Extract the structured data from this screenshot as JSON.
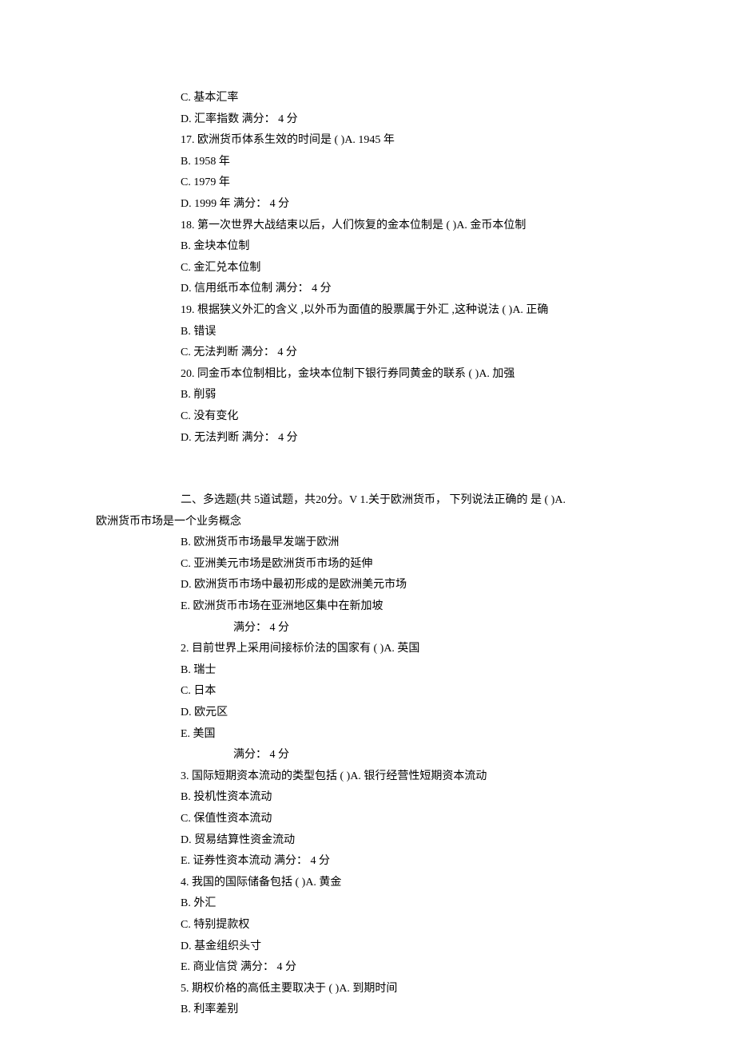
{
  "colors": {
    "text": "#000000",
    "background": "#ffffff"
  },
  "typography": {
    "font_family": "SimSun",
    "font_size_pt": 11,
    "line_height": 1.9
  },
  "top": {
    "opt_c": "C.  基本汇率",
    "opt_d": "D.  汇率指数  满分：  4 分",
    "q17": "17.    欧洲货币体系生效的时间是  ( )A. 1945 年",
    "q17_b": "B.  1958 年",
    "q17_c": "C.  1979 年",
    "q17_d": "D.  1999 年  满分：  4 分",
    "q18": "18.    第一次世界大战结束以后，人们恢复的金本位制是        ( )A. 金币本位制",
    "q18_b": "B.  金块本位制",
    "q18_c": "C.  金汇兑本位制",
    "q18_d": "D.  信用纸币本位制  满分：  4 分",
    "q19": "19.    根据狭义外汇的含义 ,以外币为面值的股票属于外汇 ,这种说法 ( )A. 正确",
    "q19_b": "B.  错误",
    "q19_c": "C.  无法判断  满分：  4 分",
    "q20": "20.    同金币本位制相比，金块本位制下银行券同黄金的联系 ( )A. 加强",
    "q20_b": "B.  削弱",
    "q20_c": "C.  没有变化",
    "q20_d": "D.  无法判断  满分：  4 分"
  },
  "section2": {
    "header_line1": "二、多选题(共  5道试题，共20分。V 1.关于欧洲货币， 下列说法正确的  是  ( )A.",
    "header_line2": "欧洲货币市场是一个业务概念",
    "q1_b": "B.  欧洲货币市场最早发端于欧洲",
    "q1_c": "C.  亚洲美元市场是欧洲货币市场的延伸",
    "q1_d": "D.  欧洲货币市场中最初形成的是欧洲美元市场",
    "q1_e": "E.  欧洲货币市场在亚洲地区集中在新加坡",
    "q1_score": "满分：  4 分",
    "q2": "2.  目前世界上采用间接标价法的国家有 ( )A. 英国",
    "q2_b": "B.  瑞士",
    "q2_c": "C.  日本",
    "q2_d": "D.  欧元区",
    "q2_e": "E.  美国",
    "q2_score": "满分：  4 分",
    "q3": "3.  国际短期资本流动的类型包括  ( )A. 银行经营性短期资本流动",
    "q3_b": "B.  投机性资本流动",
    "q3_c": "C.  保值性资本流动",
    "q3_d": "D.  贸易结算性资金流动",
    "q3_e": "E.  证券性资本流动  满分：  4 分",
    "q4": "4.  我国的国际储备包括  ( )A. 黄金",
    "q4_b": "B.  外汇",
    "q4_c": "C.  特别提款权",
    "q4_d": "D.  基金组织头寸",
    "q4_e": "E.  商业信贷  满分：  4 分",
    "q5": "5.  期权价格的高低主要取决于 ( )A. 到期时间",
    "q5_b": "B.  利率差别"
  }
}
